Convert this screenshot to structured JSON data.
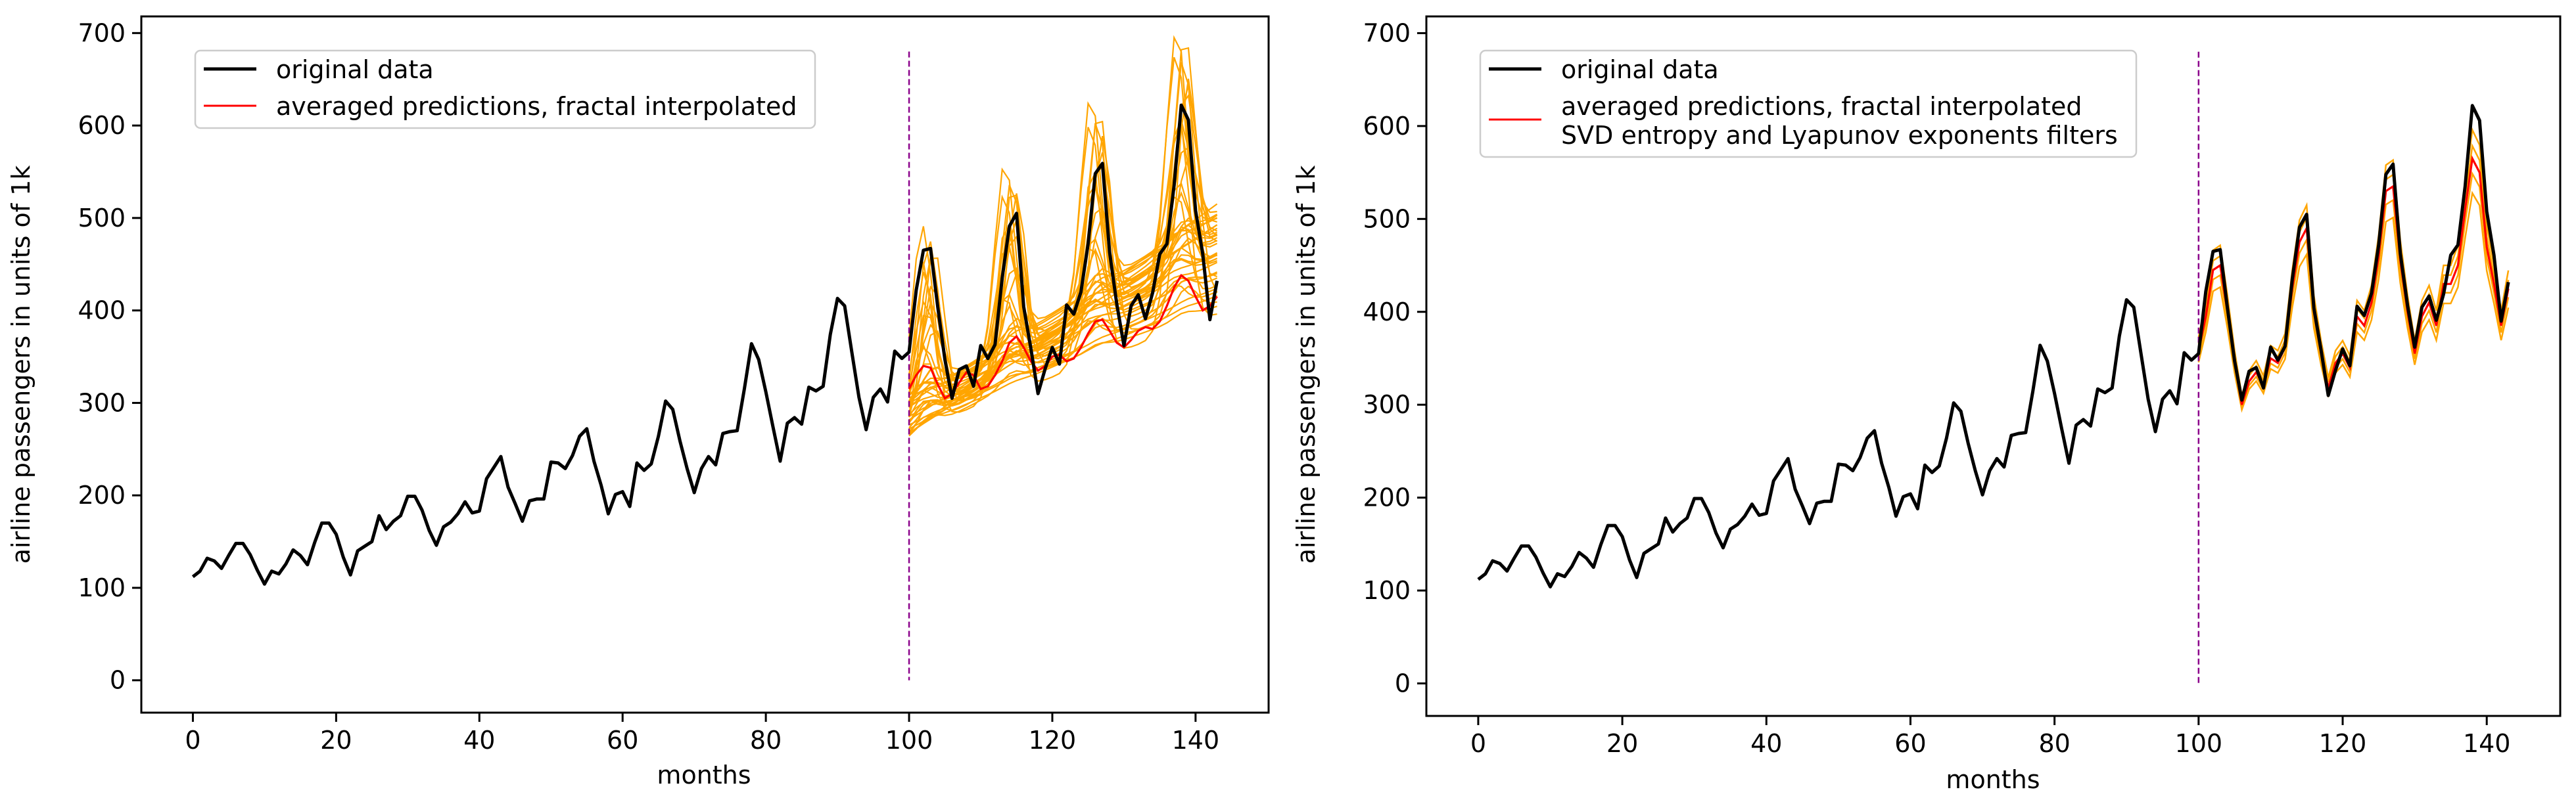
{
  "chart_data": [
    {
      "type": "line",
      "xlabel": "months",
      "ylabel": "airline passengers in units of 1k",
      "xlim": [
        -7.2,
        150.2
      ],
      "ylim": [
        -35,
        718
      ],
      "xticks": [
        0,
        20,
        40,
        60,
        80,
        100,
        120,
        140
      ],
      "yticks": [
        0,
        100,
        200,
        300,
        400,
        500,
        600,
        700
      ],
      "legend_position": "top-left",
      "legend": [
        {
          "label": "original data",
          "color": "#000000"
        },
        {
          "label": "averaged predictions, fractal interpolated",
          "color": "#ff0000"
        }
      ],
      "vline": {
        "x": 100,
        "y_range": [
          0,
          680
        ],
        "color": "#8b008b"
      },
      "colors": {
        "original": "#000000",
        "average": "#ff0000",
        "ensemble": "#ffa500",
        "split": "#8b008b"
      },
      "original": {
        "x_start": 0,
        "values": [
          112,
          118,
          132,
          129,
          121,
          135,
          148,
          148,
          136,
          119,
          104,
          118,
          115,
          126,
          141,
          135,
          125,
          149,
          170,
          170,
          158,
          133,
          114,
          140,
          145,
          150,
          178,
          163,
          172,
          178,
          199,
          199,
          184,
          162,
          146,
          166,
          171,
          180,
          193,
          181,
          183,
          218,
          230,
          242,
          209,
          191,
          172,
          194,
          196,
          196,
          236,
          235,
          229,
          243,
          264,
          272,
          237,
          211,
          180,
          201,
          204,
          188,
          235,
          227,
          234,
          264,
          302,
          293,
          259,
          229,
          203,
          229,
          242,
          233,
          267,
          269,
          270,
          315,
          364,
          347,
          312,
          274,
          237,
          278,
          284,
          277,
          317,
          313,
          318,
          374,
          413,
          405,
          355,
          306,
          271,
          306,
          315,
          301,
          356,
          348,
          355,
          422,
          465,
          467,
          404,
          347,
          305,
          336,
          340,
          318,
          362,
          348,
          363,
          435,
          491,
          505,
          404,
          359,
          310,
          337,
          360,
          342,
          406,
          396,
          420,
          472,
          548,
          559,
          463,
          407,
          362,
          405,
          417,
          391,
          419,
          461,
          472,
          535,
          622,
          606,
          508,
          461,
          390,
          432
        ]
      },
      "average": {
        "x_start": 100,
        "values": [
          315,
          330,
          340,
          338,
          320,
          305,
          310,
          322,
          333,
          330,
          315,
          318,
          330,
          345,
          365,
          372,
          360,
          345,
          335,
          340,
          350,
          352,
          345,
          348,
          360,
          375,
          388,
          390,
          378,
          365,
          360,
          368,
          378,
          382,
          380,
          388,
          405,
          425,
          438,
          432,
          415,
          400,
          405,
          415
        ]
      },
      "ensemble": {
        "x_start": 100,
        "count": 40,
        "start_range": [
          262,
          305
        ],
        "slope_range": [
          2.6,
          5.8
        ],
        "peaks": [
          102.5,
          114,
          126,
          138
        ]
      }
    },
    {
      "type": "line",
      "xlabel": "months",
      "ylabel": "airline passengers in units of 1k",
      "xlim": [
        -7.2,
        150.2
      ],
      "ylim": [
        -35,
        718
      ],
      "xticks": [
        0,
        20,
        40,
        60,
        80,
        100,
        120,
        140
      ],
      "yticks": [
        0,
        100,
        200,
        300,
        400,
        500,
        600,
        700
      ],
      "legend_position": "top-left",
      "legend": [
        {
          "label": "original data",
          "color": "#000000"
        },
        {
          "label": "averaged predictions, fractal interpolated\nSVD entropy and Lyapunov exponents filters",
          "color": "#ff0000"
        }
      ],
      "vline": {
        "x": 100,
        "y_range": [
          0,
          680
        ],
        "color": "#8b008b"
      },
      "colors": {
        "original": "#000000",
        "average": "#ff0000",
        "ensemble": "#ffa500",
        "split": "#8b008b"
      },
      "original": {
        "x_start": 0,
        "values": [
          112,
          118,
          132,
          129,
          121,
          135,
          148,
          148,
          136,
          119,
          104,
          118,
          115,
          126,
          141,
          135,
          125,
          149,
          170,
          170,
          158,
          133,
          114,
          140,
          145,
          150,
          178,
          163,
          172,
          178,
          199,
          199,
          184,
          162,
          146,
          166,
          171,
          180,
          193,
          181,
          183,
          218,
          230,
          242,
          209,
          191,
          172,
          194,
          196,
          196,
          236,
          235,
          229,
          243,
          264,
          272,
          237,
          211,
          180,
          201,
          204,
          188,
          235,
          227,
          234,
          264,
          302,
          293,
          259,
          229,
          203,
          229,
          242,
          233,
          267,
          269,
          270,
          315,
          364,
          347,
          312,
          274,
          237,
          278,
          284,
          277,
          317,
          313,
          318,
          374,
          413,
          405,
          355,
          306,
          271,
          306,
          315,
          301,
          356,
          348,
          355,
          422,
          465,
          467,
          404,
          347,
          305,
          336,
          340,
          318,
          362,
          348,
          363,
          435,
          491,
          505,
          404,
          359,
          310,
          337,
          360,
          342,
          406,
          396,
          420,
          472,
          548,
          559,
          463,
          407,
          362,
          405,
          417,
          391,
          419,
          461,
          472,
          535,
          622,
          606,
          508,
          461,
          390,
          432
        ]
      },
      "average": {
        "x_start": 100,
        "values": [
          358,
          395,
          445,
          450,
          400,
          345,
          300,
          325,
          335,
          320,
          350,
          345,
          362,
          425,
          475,
          490,
          400,
          355,
          318,
          345,
          355,
          340,
          395,
          385,
          410,
          460,
          530,
          535,
          455,
          400,
          355,
          395,
          410,
          385,
          430,
          430,
          450,
          510,
          565,
          550,
          470,
          430,
          385,
          425
        ]
      },
      "ensemble": {
        "x_start": 100,
        "count": 4,
        "offsets": [
          -15,
          -7,
          8,
          16
        ],
        "scales": [
          0.88,
          0.95,
          1.03,
          1.08
        ]
      }
    }
  ]
}
